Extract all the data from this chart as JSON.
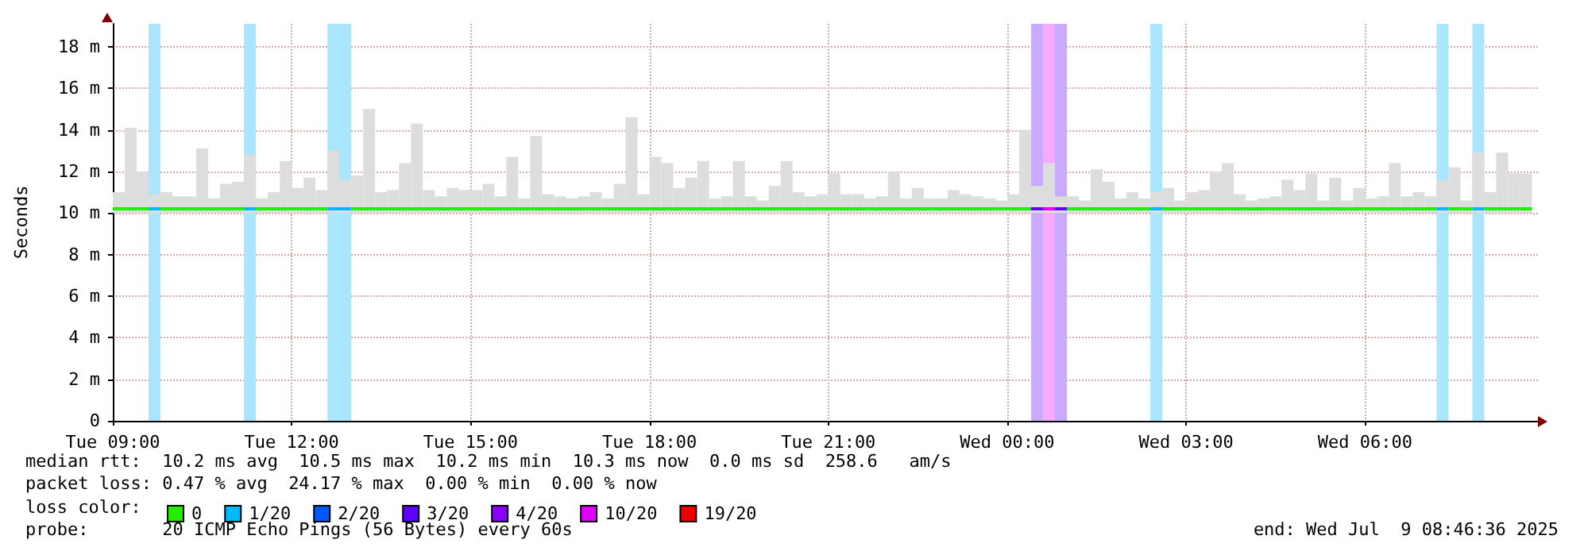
{
  "chart_data": {
    "type": "bar",
    "ylabel": "Seconds",
    "legend_title": "loss color:",
    "legend": "bottom",
    "grid": true,
    "annotations": [
      "median rtt:  10.2 ms avg  10.5 ms max  10.2 ms min  10.3 ms now  0.0 ms sd  258.6   am/s",
      "packet loss: 0.47 % avg  24.17 % max  0.00 % min  0.00 % now",
      "probe:       20 ICMP Echo Pings (56 Bytes) every 60s",
      "end: Wed Jul  9 08:46:36 2025"
    ],
    "xlim": [
      "2025-07-08T09:00",
      "2025-07-09T08:54"
    ],
    "xticks": [
      {
        "value": "2025-07-08T09:00",
        "label": "Tue 09:00"
      },
      {
        "value": "2025-07-08T12:00",
        "label": "Tue 12:00"
      },
      {
        "value": "2025-07-08T15:00",
        "label": "Tue 15:00"
      },
      {
        "value": "2025-07-08T18:00",
        "label": "Tue 18:00"
      },
      {
        "value": "2025-07-08T21:00",
        "label": "Tue 21:00"
      },
      {
        "value": "2025-07-09T00:00",
        "label": "Wed 00:00"
      },
      {
        "value": "2025-07-09T03:00",
        "label": "Wed 03:00"
      },
      {
        "value": "2025-07-09T06:00",
        "label": "Wed 06:00"
      }
    ],
    "ylim": [
      0,
      19.1
    ],
    "yticks": [
      0,
      {
        "value": 2,
        "label": "2 m"
      },
      {
        "value": 4,
        "label": "4 m"
      },
      {
        "value": 6,
        "label": "6 m"
      },
      {
        "value": 8,
        "label": "8 m"
      },
      {
        "value": 10,
        "label": "10 m"
      },
      {
        "value": 12,
        "label": "12 m"
      },
      {
        "value": 14,
        "label": "14 m"
      },
      {
        "value": 16,
        "label": "16 m"
      },
      {
        "value": 18,
        "label": "18 m"
      }
    ],
    "bands": [
      {
        "axis": "x",
        "from": "2025-07-08T09:36",
        "to": "2025-07-08T09:48",
        "color": "#aae6ff"
      },
      {
        "axis": "x",
        "from": "2025-07-08T11:12",
        "to": "2025-07-08T11:24",
        "color": "#aae6ff"
      },
      {
        "axis": "x",
        "from": "2025-07-08T12:36",
        "to": "2025-07-08T13:00",
        "color": "#aae6ff"
      },
      {
        "axis": "x",
        "from": "2025-07-09T00:24",
        "to": "2025-07-09T00:36",
        "color": "#c8aaff"
      },
      {
        "axis": "x",
        "from": "2025-07-09T00:36",
        "to": "2025-07-09T00:48",
        "color": "#f5aaff"
      },
      {
        "axis": "x",
        "from": "2025-07-09T00:48",
        "to": "2025-07-09T01:00",
        "color": "#c8aaff"
      },
      {
        "axis": "x",
        "from": "2025-07-09T02:24",
        "to": "2025-07-09T02:36",
        "color": "#aae6ff"
      },
      {
        "axis": "x",
        "from": "2025-07-09T07:12",
        "to": "2025-07-09T07:24",
        "color": "#aae6ff"
      },
      {
        "axis": "x",
        "from": "2025-07-09T07:48",
        "to": "2025-07-09T08:00",
        "color": "#aae6ff"
      }
    ],
    "series": [
      {
        "color": "#dddddd",
        "base": [
          10.0,
          10.0,
          10.0,
          10.0,
          10.0,
          10.0,
          10.0,
          10.0,
          10.0,
          10.0,
          10.0,
          10.0,
          10.0,
          10.0,
          10.0,
          10.0,
          10.0,
          10.0,
          10.0,
          10.0,
          10.0,
          10.0,
          10.0,
          10.0,
          10.0,
          10.0,
          10.0,
          10.0,
          10.0,
          10.0,
          10.0,
          10.0,
          10.0,
          10.0,
          10.0,
          10.0,
          10.0,
          10.0,
          10.0,
          10.0,
          10.0,
          10.0,
          10.0,
          10.0,
          10.0,
          10.0,
          10.0,
          10.0,
          10.0,
          10.0,
          10.0,
          10.0,
          10.0,
          10.0,
          10.0,
          10.0,
          10.0,
          10.0,
          10.0,
          10.0,
          10.0,
          10.0,
          10.0,
          10.0,
          10.0,
          10.0,
          10.0,
          10.0,
          10.0,
          10.0,
          10.0,
          10.0,
          10.0,
          10.0,
          10.0,
          10.0,
          10.0,
          10.0,
          10.0,
          10.0,
          10.0,
          10.0,
          10.0,
          10.0,
          10.0,
          10.0,
          10.0,
          10.0,
          10.0,
          10.0,
          10.0,
          10.0,
          10.0,
          10.0,
          10.0,
          10.0,
          10.0,
          10.0,
          10.0,
          10.0,
          10.0,
          10.0,
          10.0,
          10.0,
          10.0,
          10.0,
          10.0,
          10.0,
          10.0,
          10.0,
          10.0,
          10.0,
          10.0,
          10.0,
          10.0,
          10.0,
          10.0,
          10.0,
          10.0
        ],
        "x": [
          "2025-07-08T09:06",
          "2025-07-08T09:18",
          "2025-07-08T09:30",
          "2025-07-08T09:42",
          "2025-07-08T09:54",
          "2025-07-08T10:06",
          "2025-07-08T10:18",
          "2025-07-08T10:30",
          "2025-07-08T10:42",
          "2025-07-08T10:54",
          "2025-07-08T11:06",
          "2025-07-08T11:18",
          "2025-07-08T11:30",
          "2025-07-08T11:42",
          "2025-07-08T11:54",
          "2025-07-08T12:06",
          "2025-07-08T12:18",
          "2025-07-08T12:30",
          "2025-07-08T12:42",
          "2025-07-08T12:54",
          "2025-07-08T13:06",
          "2025-07-08T13:18",
          "2025-07-08T13:30",
          "2025-07-08T13:42",
          "2025-07-08T13:54",
          "2025-07-08T14:06",
          "2025-07-08T14:18",
          "2025-07-08T14:30",
          "2025-07-08T14:42",
          "2025-07-08T14:54",
          "2025-07-08T15:06",
          "2025-07-08T15:18",
          "2025-07-08T15:30",
          "2025-07-08T15:42",
          "2025-07-08T15:54",
          "2025-07-08T16:06",
          "2025-07-08T16:18",
          "2025-07-08T16:30",
          "2025-07-08T16:42",
          "2025-07-08T16:54",
          "2025-07-08T17:06",
          "2025-07-08T17:18",
          "2025-07-08T17:30",
          "2025-07-08T17:42",
          "2025-07-08T17:54",
          "2025-07-08T18:06",
          "2025-07-08T18:18",
          "2025-07-08T18:30",
          "2025-07-08T18:42",
          "2025-07-08T18:54",
          "2025-07-08T19:06",
          "2025-07-08T19:18",
          "2025-07-08T19:30",
          "2025-07-08T19:42",
          "2025-07-08T19:54",
          "2025-07-08T20:06",
          "2025-07-08T20:18",
          "2025-07-08T20:30",
          "2025-07-08T20:42",
          "2025-07-08T20:54",
          "2025-07-08T21:06",
          "2025-07-08T21:18",
          "2025-07-08T21:30",
          "2025-07-08T21:42",
          "2025-07-08T21:54",
          "2025-07-08T22:06",
          "2025-07-08T22:18",
          "2025-07-08T22:30",
          "2025-07-08T22:42",
          "2025-07-08T22:54",
          "2025-07-08T23:06",
          "2025-07-08T23:18",
          "2025-07-08T23:30",
          "2025-07-08T23:42",
          "2025-07-08T23:54",
          "2025-07-09T00:06",
          "2025-07-09T00:18",
          "2025-07-09T00:30",
          "2025-07-09T00:42",
          "2025-07-09T00:54",
          "2025-07-09T01:06",
          "2025-07-09T01:18",
          "2025-07-09T01:30",
          "2025-07-09T01:42",
          "2025-07-09T01:54",
          "2025-07-09T02:06",
          "2025-07-09T02:18",
          "2025-07-09T02:30",
          "2025-07-09T02:42",
          "2025-07-09T02:54",
          "2025-07-09T03:06",
          "2025-07-09T03:18",
          "2025-07-09T03:30",
          "2025-07-09T03:42",
          "2025-07-09T03:54",
          "2025-07-09T04:06",
          "2025-07-09T04:18",
          "2025-07-09T04:30",
          "2025-07-09T04:42",
          "2025-07-09T04:54",
          "2025-07-09T05:06",
          "2025-07-09T05:18",
          "2025-07-09T05:30",
          "2025-07-09T05:42",
          "2025-07-09T05:54",
          "2025-07-09T06:06",
          "2025-07-09T06:18",
          "2025-07-09T06:30",
          "2025-07-09T06:42",
          "2025-07-09T06:54",
          "2025-07-09T07:06",
          "2025-07-09T07:18",
          "2025-07-09T07:30",
          "2025-07-09T07:42",
          "2025-07-09T07:54",
          "2025-07-09T08:06",
          "2025-07-09T08:18",
          "2025-07-09T08:30",
          "2025-07-09T08:42"
        ],
        "values": [
          1.0,
          4.1,
          2.0,
          0.9,
          1.0,
          0.8,
          0.8,
          3.1,
          0.7,
          1.4,
          1.5,
          2.8,
          0.7,
          1.0,
          2.5,
          1.2,
          1.7,
          1.1,
          3.0,
          1.6,
          1.8,
          5.0,
          1.0,
          1.1,
          2.4,
          4.3,
          1.1,
          0.8,
          1.2,
          1.1,
          1.1,
          1.4,
          0.8,
          2.7,
          0.7,
          3.7,
          0.9,
          0.8,
          0.7,
          0.8,
          1.0,
          0.7,
          1.4,
          4.6,
          0.9,
          2.7,
          2.4,
          1.2,
          1.7,
          2.5,
          0.7,
          0.8,
          2.5,
          0.8,
          0.6,
          1.3,
          2.5,
          1.0,
          0.8,
          0.9,
          1.9,
          0.9,
          0.9,
          0.7,
          0.8,
          2.0,
          0.7,
          1.2,
          0.7,
          0.7,
          1.1,
          0.9,
          0.8,
          0.7,
          0.6,
          0.9,
          4.0,
          1.3,
          2.4,
          0.8,
          0.8,
          0.6,
          2.1,
          1.5,
          0.7,
          1.0,
          0.7,
          1.0,
          1.2,
          0.6,
          1.0,
          1.1,
          2.0,
          2.4,
          0.9,
          0.6,
          0.7,
          0.8,
          1.6,
          1.1,
          1.9,
          0.6,
          1.7,
          0.6,
          1.2,
          0.7,
          0.8,
          2.4,
          0.8,
          1.0,
          0.8,
          1.6,
          2.2,
          0.6,
          2.9,
          1.0,
          2.9,
          1.9,
          1.9
        ]
      },
      {
        "type": "line",
        "name": "0",
        "color": "#22ee00",
        "x": [
          "2025-07-08T09:00",
          "2025-07-08T09:36",
          "2025-07-08T09:42",
          "2025-07-08T09:48",
          "2025-07-08T11:12",
          "2025-07-08T11:18",
          "2025-07-08T11:24",
          "2025-07-08T12:36",
          "2025-07-08T12:48",
          "2025-07-08T13:00",
          "2025-07-09T00:24",
          "2025-07-09T00:36",
          "2025-07-09T01:00",
          "2025-07-09T02:24",
          "2025-07-09T02:30",
          "2025-07-09T02:36",
          "2025-07-09T07:12",
          "2025-07-09T07:18",
          "2025-07-09T07:24",
          "2025-07-09T07:48",
          "2025-07-09T07:54",
          "2025-07-09T08:00",
          "2025-07-09T08:48"
        ],
        "values": [
          10.2,
          10.2,
          null,
          10.2,
          10.2,
          null,
          10.2,
          10.2,
          null,
          10.2,
          10.2,
          null,
          10.2,
          10.2,
          null,
          10.2,
          10.2,
          null,
          10.2,
          10.2,
          null,
          10.2,
          10.2
        ]
      },
      {
        "type": "line",
        "name": "1/20",
        "color": "#00b8ff",
        "x": [
          "2025-07-08T09:36",
          "2025-07-08T09:48",
          "2025-07-08T10:00",
          "2025-07-08T11:12",
          "2025-07-08T11:24",
          "2025-07-08T12:00",
          "2025-07-08T12:36",
          "2025-07-08T13:00",
          "2025-07-08T20:00",
          "2025-07-09T02:24",
          "2025-07-09T02:36",
          "2025-07-09T05:00",
          "2025-07-09T07:12",
          "2025-07-09T07:24",
          "2025-07-09T07:36",
          "2025-07-09T07:48",
          "2025-07-09T08:00"
        ],
        "values": [
          10.2,
          10.2,
          null,
          10.2,
          10.2,
          null,
          10.2,
          10.2,
          null,
          10.2,
          10.2,
          null,
          10.2,
          10.2,
          null,
          10.2,
          10.2
        ]
      },
      {
        "type": "line",
        "name": "2/20",
        "color": "#0059ff"
      },
      {
        "type": "line",
        "name": "3/20",
        "color": "#5e00ff",
        "x": [
          "2025-07-09T00:24",
          "2025-07-09T00:36",
          "2025-07-09T00:42",
          "2025-07-09T00:48",
          "2025-07-09T01:00"
        ],
        "values": [
          10.2,
          10.2,
          null,
          10.2,
          10.2
        ]
      },
      {
        "type": "line",
        "name": "4/20",
        "color": "#8a00ff"
      },
      {
        "type": "line",
        "name": "10/20",
        "color": "#e000ff",
        "x": [
          "2025-07-09T00:36",
          "2025-07-09T00:48"
        ],
        "values": [
          10.2,
          10.2
        ]
      },
      {
        "type": "line",
        "name": "19/20",
        "color": "#ee0000"
      }
    ]
  }
}
